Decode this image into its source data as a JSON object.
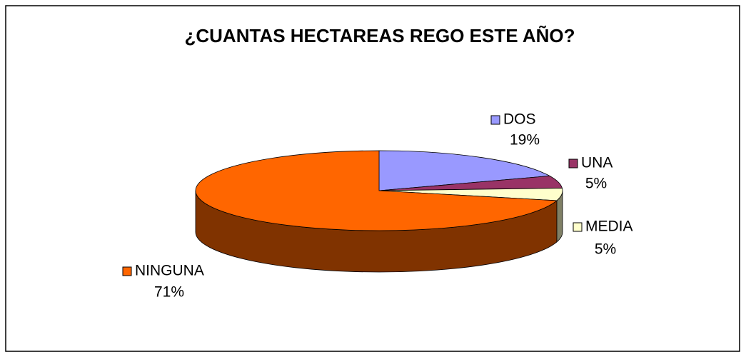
{
  "chart_data": {
    "type": "pie3d",
    "title": "¿CUANTAS HECTAREAS REGO ESTE AÑO?",
    "categories": [
      "DOS",
      "UNA",
      "MEDIA",
      "NINGUNA"
    ],
    "values": [
      19,
      5,
      5,
      71
    ],
    "value_labels": [
      "19%",
      "5%",
      "5%",
      "71%"
    ],
    "colors": [
      "#9999ff",
      "#993366",
      "#ffffcc",
      "#ff6600"
    ]
  }
}
